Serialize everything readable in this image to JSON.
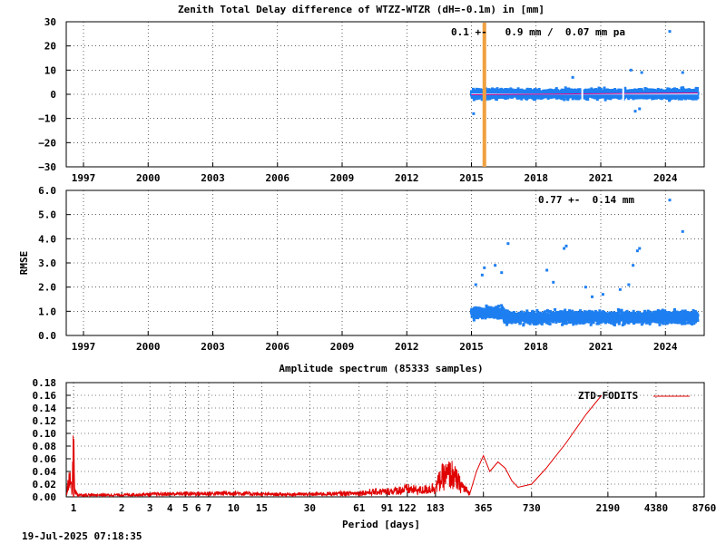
{
  "timestamp": "19-Jul-2025 07:18:35",
  "chart_data": [
    {
      "type": "scatter",
      "title": "Zenith Total Delay difference of WTZZ-WTZR (dH=-0.1m) in [mm]",
      "xlabel": "",
      "ylabel": "",
      "xlim": [
        1996.2,
        2025.8
      ],
      "ylim": [
        -30,
        30
      ],
      "x_ticks": [
        "1997",
        "2000",
        "2003",
        "2006",
        "2009",
        "2012",
        "2015",
        "2018",
        "2021",
        "2024"
      ],
      "y_ticks": [
        "30",
        "20",
        "10",
        "0",
        "−10",
        "−20",
        "−30"
      ],
      "y_tick_values": [
        30,
        20,
        10,
        0,
        -10,
        -20,
        -30
      ],
      "annotation": "0.1 +-   0.9 mm /  0.07 mm pa",
      "grid": true,
      "colors": {
        "points": "#1e7ff0",
        "trend": "#e0008a",
        "mean_line": "#ffffff",
        "event_line": "#f0a040"
      },
      "event_x": 2015.6,
      "data_start": 2015.0,
      "data_end": 2025.5,
      "mean": 0.1,
      "series": [
        {
          "name": "",
          "values_summary": "daily ZTD differences, mostly within -5..+5 mm",
          "outliers": [
            [
              2015.1,
              -8
            ],
            [
              2015.6,
              -6
            ],
            [
              2019.7,
              7
            ],
            [
              2022.4,
              10
            ],
            [
              2022.6,
              -7
            ],
            [
              2022.8,
              -6
            ],
            [
              2022.9,
              9
            ],
            [
              2024.2,
              26
            ],
            [
              2024.8,
              9
            ]
          ]
        }
      ]
    },
    {
      "type": "scatter",
      "title": "",
      "xlabel": "",
      "ylabel": "RMSE",
      "xlim": [
        1996.2,
        2025.8
      ],
      "ylim": [
        0,
        6
      ],
      "x_ticks": [
        "1997",
        "2000",
        "2003",
        "2006",
        "2009",
        "2012",
        "2015",
        "2018",
        "2021",
        "2024"
      ],
      "y_ticks": [
        "6.0",
        "5.0",
        "4.0",
        "3.0",
        "2.0",
        "1.0",
        "0.0"
      ],
      "y_tick_values": [
        6,
        5,
        4,
        3,
        2,
        1,
        0
      ],
      "annotation": "0.77 +-  0.14 mm",
      "grid": true,
      "colors": {
        "points": "#1e7ff0"
      },
      "series": [
        {
          "name": "",
          "values_summary": "daily RMSE, mostly 0.5..1.3 mm",
          "outliers": [
            [
              2015.2,
              2.1
            ],
            [
              2015.5,
              2.5
            ],
            [
              2015.6,
              2.8
            ],
            [
              2016.1,
              2.9
            ],
            [
              2016.7,
              3.8
            ],
            [
              2016.4,
              2.6
            ],
            [
              2018.5,
              2.7
            ],
            [
              2018.8,
              2.2
            ],
            [
              2019.3,
              3.6
            ],
            [
              2019.4,
              3.7
            ],
            [
              2020.3,
              2.0
            ],
            [
              2020.6,
              1.6
            ],
            [
              2021.1,
              1.7
            ],
            [
              2021.9,
              1.9
            ],
            [
              2022.3,
              2.1
            ],
            [
              2022.5,
              2.9
            ],
            [
              2022.7,
              3.5
            ],
            [
              2022.8,
              3.6
            ],
            [
              2024.2,
              5.6
            ],
            [
              2024.8,
              4.3
            ]
          ]
        }
      ]
    },
    {
      "type": "line",
      "title": "Amplitude spectrum (85333 samples)",
      "xlabel": "Period [days]",
      "ylabel": "",
      "xscale": "log",
      "xlim": [
        0.9,
        8760
      ],
      "ylim": [
        0,
        0.18
      ],
      "x_ticks": [
        "1",
        "2",
        "3",
        "4",
        "5",
        "6",
        "7",
        "10",
        "15",
        "30",
        "61",
        "91",
        "122",
        "183",
        "365",
        "730",
        "2190",
        "4380",
        "8760"
      ],
      "x_tick_values": [
        1,
        2,
        3,
        4,
        5,
        6,
        7,
        10,
        15,
        30,
        61,
        91,
        122,
        183,
        365,
        730,
        2190,
        4380,
        8760
      ],
      "y_ticks": [
        "0.18",
        "0.16",
        "0.14",
        "0.12",
        "0.10",
        "0.08",
        "0.06",
        "0.04",
        "0.02",
        "0.00"
      ],
      "y_tick_values": [
        0.18,
        0.16,
        0.14,
        0.12,
        0.1,
        0.08,
        0.06,
        0.04,
        0.02,
        0.0
      ],
      "grid": true,
      "legend": "top-right",
      "series": [
        {
          "name": "ZTD-FODITS",
          "color": "#e00000",
          "x": [
            0.9,
            0.95,
            0.98,
            1.0,
            1.02,
            1.05,
            1.1,
            1.5,
            2.0,
            3.0,
            5.0,
            7.0,
            10,
            15,
            30,
            45,
            61,
            80,
            91,
            122,
            150,
            183,
            200,
            230,
            260,
            300,
            330,
            365,
            400,
            450,
            500,
            550,
            600,
            730,
            900,
            1200,
            1600,
            2000
          ],
          "y": [
            0.004,
            0.03,
            0.006,
            0.088,
            0.01,
            0.004,
            0.003,
            0.003,
            0.003,
            0.004,
            0.005,
            0.005,
            0.006,
            0.004,
            0.004,
            0.005,
            0.006,
            0.008,
            0.008,
            0.012,
            0.01,
            0.015,
            0.03,
            0.036,
            0.02,
            0.005,
            0.04,
            0.065,
            0.04,
            0.055,
            0.045,
            0.025,
            0.015,
            0.02,
            0.045,
            0.085,
            0.13,
            0.16
          ]
        }
      ]
    }
  ]
}
